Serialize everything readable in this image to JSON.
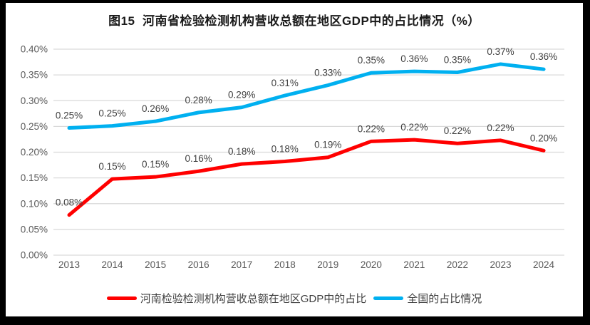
{
  "title": "图15  河南省检验检测机构营收总额在地区GDP中的占比情况（%）",
  "chart_data": {
    "type": "line",
    "categories": [
      "2013",
      "2014",
      "2015",
      "2016",
      "2017",
      "2018",
      "2019",
      "2020",
      "2021",
      "2022",
      "2023",
      "2024"
    ],
    "series": [
      {
        "name": "河南检验检测机构营收总额在地区GDP中的占比",
        "color": "#FF0000",
        "values": [
          0.08,
          0.15,
          0.15,
          0.16,
          0.18,
          0.18,
          0.19,
          0.22,
          0.22,
          0.22,
          0.22,
          0.2
        ],
        "labels": [
          "0.08%",
          "0.15%",
          "0.15%",
          "0.16%",
          "0.18%",
          "0.18%",
          "0.19%",
          "0.22%",
          "0.22%",
          "0.22%",
          "0.22%",
          "0.20%"
        ],
        "values_plot": [
          0.078,
          0.148,
          0.152,
          0.163,
          0.177,
          0.182,
          0.19,
          0.221,
          0.224,
          0.217,
          0.223,
          0.203
        ]
      },
      {
        "name": "全国的占比情况",
        "color": "#00B0F0",
        "values": [
          0.25,
          0.25,
          0.26,
          0.28,
          0.29,
          0.31,
          0.33,
          0.35,
          0.36,
          0.35,
          0.37,
          0.36
        ],
        "labels": [
          "0.25%",
          "0.25%",
          "0.26%",
          "0.28%",
          "0.29%",
          "0.31%",
          "0.33%",
          "0.35%",
          "0.36%",
          "0.35%",
          "0.37%",
          "0.36%"
        ],
        "values_plot": [
          0.247,
          0.251,
          0.26,
          0.277,
          0.287,
          0.31,
          0.33,
          0.354,
          0.357,
          0.355,
          0.371,
          0.361
        ]
      }
    ],
    "xlabel": "",
    "ylabel": "",
    "ylim": [
      0,
      0.4
    ],
    "ytick_labels": [
      "0.00%",
      "0.05%",
      "0.10%",
      "0.15%",
      "0.20%",
      "0.25%",
      "0.30%",
      "0.35%",
      "0.40%"
    ],
    "grid": true,
    "legend_position": "bottom",
    "axis_color": "#595959",
    "data_label_color": "#404040",
    "grid_color": "#D9D9D9"
  }
}
